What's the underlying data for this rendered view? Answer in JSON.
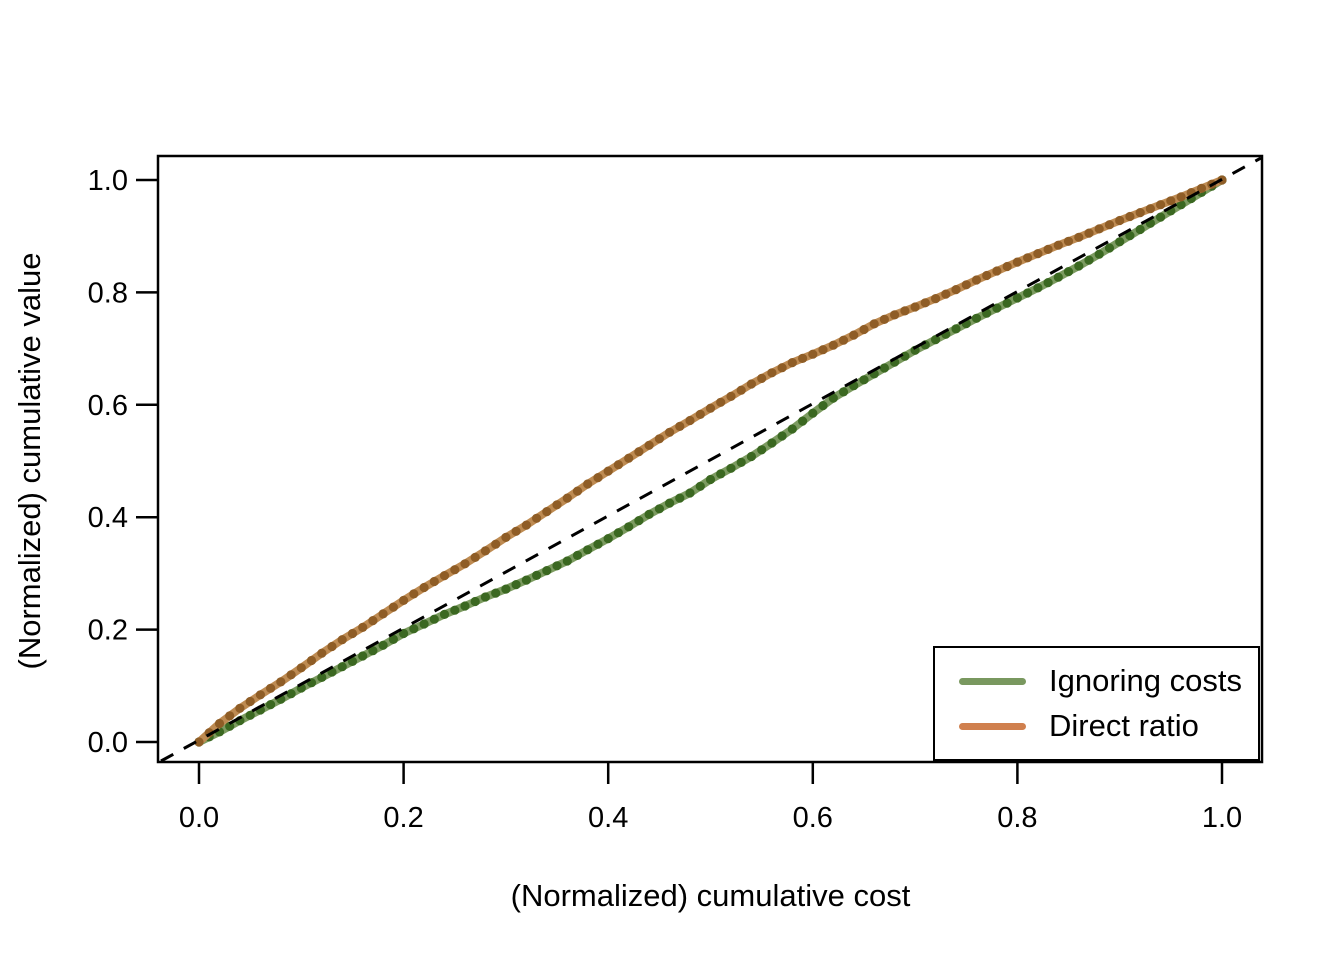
{
  "figure": {
    "background_color": "#ffffff",
    "text_color": "#000000"
  },
  "chart_data": {
    "type": "line",
    "title": "",
    "xlabel": "(Normalized) cumulative cost",
    "ylabel": "(Normalized) cumulative value",
    "xlim": [
      0.0,
      1.0
    ],
    "ylim": [
      0.0,
      1.0
    ],
    "grid": false,
    "x_ticks": [
      "0.0",
      "0.2",
      "0.4",
      "0.6",
      "0.8",
      "1.0"
    ],
    "x_tick_values": [
      0.0,
      0.2,
      0.4,
      0.6,
      0.8,
      1.0
    ],
    "y_ticks": [
      "0.0",
      "0.2",
      "0.4",
      "0.6",
      "0.8",
      "1.0"
    ],
    "y_tick_values": [
      0.0,
      0.2,
      0.4,
      0.6,
      0.8,
      1.0
    ],
    "reference_line": {
      "name": "diagonal y = x",
      "style": "dashed",
      "color": "#000000",
      "from": [
        0.0,
        0.0
      ],
      "to": [
        1.0,
        1.0
      ]
    },
    "legend": {
      "position": "bottom-right",
      "border_color": "#000000"
    },
    "series": [
      {
        "name": "Ignoring costs",
        "legend_color": "#79985F",
        "line_color": "#7C9B60",
        "point_color": "#3B6821",
        "points": [
          [
            0.0,
            0.0
          ],
          [
            0.02,
            0.018
          ],
          [
            0.04,
            0.038
          ],
          [
            0.06,
            0.057
          ],
          [
            0.08,
            0.076
          ],
          [
            0.1,
            0.096
          ],
          [
            0.12,
            0.115
          ],
          [
            0.14,
            0.134
          ],
          [
            0.16,
            0.153
          ],
          [
            0.18,
            0.172
          ],
          [
            0.2,
            0.193
          ],
          [
            0.22,
            0.21
          ],
          [
            0.24,
            0.227
          ],
          [
            0.26,
            0.242
          ],
          [
            0.28,
            0.258
          ],
          [
            0.3,
            0.272
          ],
          [
            0.32,
            0.288
          ],
          [
            0.34,
            0.305
          ],
          [
            0.36,
            0.322
          ],
          [
            0.38,
            0.342
          ],
          [
            0.4,
            0.362
          ],
          [
            0.42,
            0.383
          ],
          [
            0.44,
            0.405
          ],
          [
            0.46,
            0.425
          ],
          [
            0.48,
            0.443
          ],
          [
            0.5,
            0.467
          ],
          [
            0.52,
            0.487
          ],
          [
            0.54,
            0.508
          ],
          [
            0.56,
            0.532
          ],
          [
            0.58,
            0.557
          ],
          [
            0.6,
            0.585
          ],
          [
            0.62,
            0.612
          ],
          [
            0.64,
            0.634
          ],
          [
            0.66,
            0.655
          ],
          [
            0.68,
            0.676
          ],
          [
            0.7,
            0.697
          ],
          [
            0.72,
            0.716
          ],
          [
            0.74,
            0.735
          ],
          [
            0.76,
            0.754
          ],
          [
            0.78,
            0.772
          ],
          [
            0.8,
            0.79
          ],
          [
            0.82,
            0.808
          ],
          [
            0.84,
            0.827
          ],
          [
            0.86,
            0.847
          ],
          [
            0.88,
            0.868
          ],
          [
            0.9,
            0.89
          ],
          [
            0.92,
            0.912
          ],
          [
            0.94,
            0.934
          ],
          [
            0.96,
            0.956
          ],
          [
            0.98,
            0.978
          ],
          [
            1.0,
            1.0
          ]
        ]
      },
      {
        "name": "Direct ratio",
        "legend_color": "#D0804E",
        "line_color": "#BE8B52",
        "point_color": "#8F5D26",
        "points": [
          [
            0.0,
            0.0
          ],
          [
            0.02,
            0.033
          ],
          [
            0.04,
            0.06
          ],
          [
            0.06,
            0.084
          ],
          [
            0.08,
            0.107
          ],
          [
            0.1,
            0.132
          ],
          [
            0.12,
            0.158
          ],
          [
            0.14,
            0.182
          ],
          [
            0.16,
            0.204
          ],
          [
            0.18,
            0.228
          ],
          [
            0.2,
            0.252
          ],
          [
            0.22,
            0.275
          ],
          [
            0.24,
            0.296
          ],
          [
            0.26,
            0.317
          ],
          [
            0.28,
            0.34
          ],
          [
            0.3,
            0.364
          ],
          [
            0.32,
            0.386
          ],
          [
            0.34,
            0.41
          ],
          [
            0.36,
            0.434
          ],
          [
            0.38,
            0.459
          ],
          [
            0.4,
            0.482
          ],
          [
            0.42,
            0.505
          ],
          [
            0.44,
            0.528
          ],
          [
            0.46,
            0.551
          ],
          [
            0.48,
            0.572
          ],
          [
            0.5,
            0.594
          ],
          [
            0.52,
            0.615
          ],
          [
            0.54,
            0.637
          ],
          [
            0.56,
            0.657
          ],
          [
            0.58,
            0.675
          ],
          [
            0.6,
            0.69
          ],
          [
            0.62,
            0.706
          ],
          [
            0.64,
            0.724
          ],
          [
            0.66,
            0.744
          ],
          [
            0.68,
            0.76
          ],
          [
            0.7,
            0.774
          ],
          [
            0.72,
            0.789
          ],
          [
            0.74,
            0.805
          ],
          [
            0.76,
            0.822
          ],
          [
            0.78,
            0.838
          ],
          [
            0.8,
            0.854
          ],
          [
            0.82,
            0.869
          ],
          [
            0.84,
            0.884
          ],
          [
            0.86,
            0.898
          ],
          [
            0.88,
            0.913
          ],
          [
            0.9,
            0.928
          ],
          [
            0.92,
            0.942
          ],
          [
            0.94,
            0.956
          ],
          [
            0.96,
            0.97
          ],
          [
            0.98,
            0.985
          ],
          [
            1.0,
            1.0
          ]
        ]
      }
    ]
  }
}
